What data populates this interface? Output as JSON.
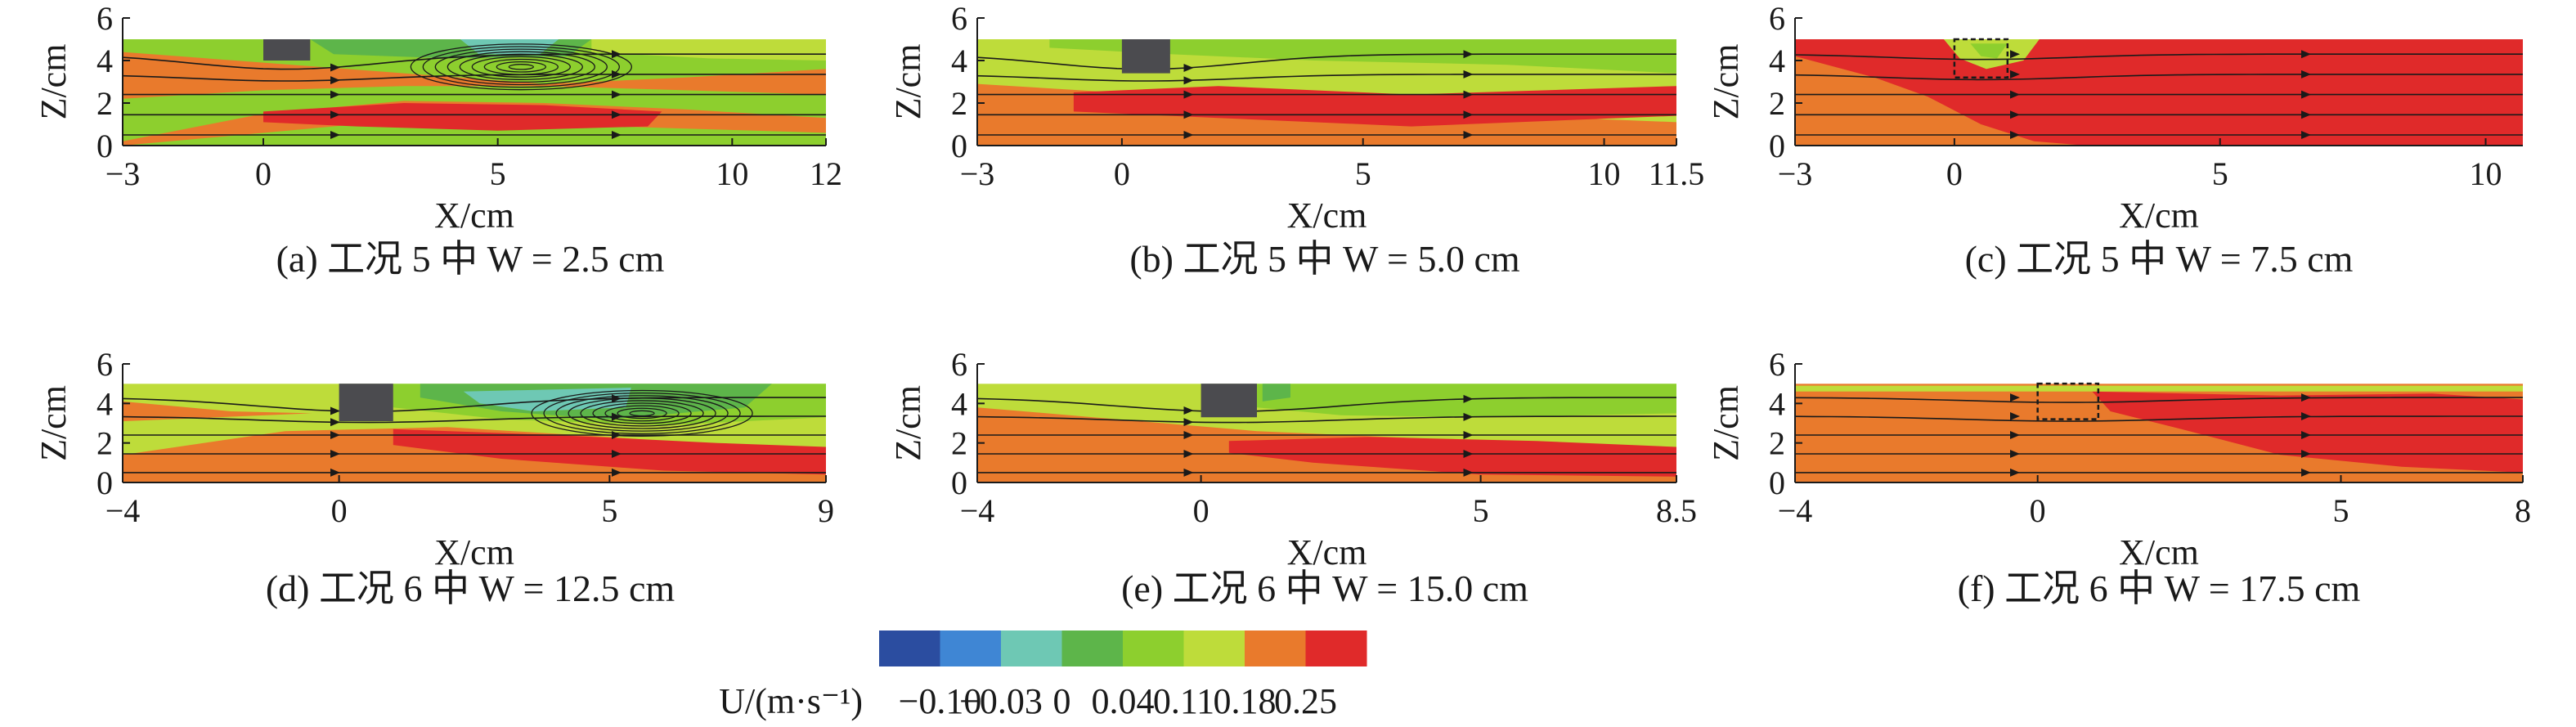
{
  "chart_data": {
    "type": "heatmap",
    "colorbar": {
      "label": "U/(m·s⁻¹)",
      "ticks": [
        "−0.10",
        "−0.03",
        "0",
        "0.04",
        "0.11",
        "0.18",
        "0.25"
      ],
      "colors": [
        "#2b4da0",
        "#3f86d4",
        "#6ec8b4",
        "#5db54a",
        "#8dcf2e",
        "#bedc3a",
        "#e97a2c",
        "#e02a2a"
      ]
    },
    "zlabel": "Z/cm",
    "xlabel": "X/cm",
    "z_ticks": [
      0,
      2,
      4,
      6
    ],
    "panels": [
      {
        "id": "a",
        "caption": "(a) 工况 5 中 W = 2.5 cm",
        "x_ticks": [
          -3,
          0,
          5,
          10,
          12
        ],
        "xlim": [
          -3,
          12
        ],
        "zlim": [
          0,
          6
        ],
        "water_depth": 5,
        "obstacle": {
          "x": [
            0,
            1
          ],
          "z": [
            4,
            5
          ],
          "submerged": false
        },
        "vortex": {
          "x": 5.5,
          "z": 3.7
        },
        "zones": [
          {
            "level": "0.04",
            "polygon": [
              [
                -3,
                0
              ],
              [
                12,
                0
              ],
              [
                12,
                5
              ],
              [
                -3,
                5
              ]
            ]
          },
          {
            "level": "0.18",
            "polygon": [
              [
                -3,
                0.2
              ],
              [
                0,
                1.5
              ],
              [
                3,
                2.1
              ],
              [
                6,
                2.0
              ],
              [
                9,
                1.7
              ],
              [
                12,
                1.3
              ],
              [
                12,
                0.6
              ],
              [
                9,
                0.8
              ],
              [
                6,
                1.0
              ],
              [
                3,
                1.2
              ],
              [
                -3,
                0
              ]
            ]
          },
          {
            "level": "0.18",
            "polygon": [
              [
                -3,
                2.2
              ],
              [
                0,
                2.6
              ],
              [
                3,
                2.8
              ],
              [
                6,
                2.8
              ],
              [
                9,
                2.6
              ],
              [
                12,
                2.4
              ],
              [
                12,
                3.6
              ],
              [
                9,
                3.2
              ],
              [
                6,
                2.9
              ],
              [
                3,
                3.4
              ],
              [
                0,
                3.9
              ],
              [
                -3,
                4.4
              ]
            ]
          },
          {
            "level": "0.25",
            "polygon": [
              [
                0,
                1.6
              ],
              [
                3,
                2.0
              ],
              [
                6,
                1.9
              ],
              [
                8.5,
                1.6
              ],
              [
                8.2,
                0.9
              ],
              [
                5,
                0.7
              ],
              [
                2,
                0.9
              ],
              [
                0,
                1.1
              ]
            ]
          },
          {
            "level": "0",
            "polygon": [
              [
                1,
                5
              ],
              [
                7,
                5
              ],
              [
                6.5,
                4.2
              ],
              [
                4,
                4.1
              ],
              [
                1.5,
                4.3
              ]
            ]
          },
          {
            "level": "-0.03",
            "polygon": [
              [
                4.2,
                5
              ],
              [
                6.3,
                5
              ],
              [
                5.9,
                4.3
              ],
              [
                4.6,
                4.3
              ]
            ]
          },
          {
            "level": "0.11",
            "polygon": [
              [
                7,
                5
              ],
              [
                12,
                5
              ],
              [
                12,
                4.0
              ],
              [
                9.5,
                4.1
              ],
              [
                7,
                4.4
              ]
            ]
          }
        ]
      },
      {
        "id": "b",
        "caption": "(b) 工况 5 中 W = 5.0 cm",
        "x_ticks": [
          -3,
          0,
          5,
          10,
          11.5
        ],
        "xlim": [
          -3,
          11.5
        ],
        "zlim": [
          0,
          6
        ],
        "water_depth": 5,
        "obstacle": {
          "x": [
            0,
            1
          ],
          "z": [
            3.4,
            5
          ],
          "submerged": false
        },
        "vortex": null,
        "zones": [
          {
            "level": "0.11",
            "polygon": [
              [
                -3,
                0
              ],
              [
                11.5,
                0
              ],
              [
                11.5,
                5
              ],
              [
                -3,
                5
              ]
            ]
          },
          {
            "level": "0.04",
            "polygon": [
              [
                -1.5,
                5
              ],
              [
                11.5,
                5
              ],
              [
                11.5,
                3.4
              ],
              [
                8,
                3.8
              ],
              [
                4,
                4.0
              ],
              [
                1,
                4.3
              ],
              [
                -1.5,
                4.6
              ]
            ]
          },
          {
            "level": "0.18",
            "polygon": [
              [
                -3,
                0
              ],
              [
                11.5,
                0
              ],
              [
                11.5,
                1.1
              ],
              [
                6,
                1.6
              ],
              [
                2,
                2.2
              ],
              [
                -3,
                2.9
              ]
            ]
          },
          {
            "level": "0.25",
            "polygon": [
              [
                -1,
                2.5
              ],
              [
                2,
                2.8
              ],
              [
                6,
                2.4
              ],
              [
                11.5,
                2.8
              ],
              [
                11.5,
                1.4
              ],
              [
                6,
                0.9
              ],
              [
                2,
                1.3
              ],
              [
                -1,
                1.6
              ]
            ]
          }
        ]
      },
      {
        "id": "c",
        "caption": "(c) 工况 5 中 W = 7.5 cm",
        "x_ticks": [
          -3,
          0,
          5,
          10
        ],
        "xlim": [
          -3,
          10.7
        ],
        "zlim": [
          0,
          6
        ],
        "water_depth": 5,
        "obstacle": {
          "x": [
            0,
            1
          ],
          "z": [
            3.2,
            5
          ],
          "submerged": true
        },
        "vortex": null,
        "zones": [
          {
            "level": "0.25",
            "polygon": [
              [
                -3,
                0
              ],
              [
                10.7,
                0
              ],
              [
                10.7,
                5
              ],
              [
                -3,
                5
              ]
            ]
          },
          {
            "level": "0.18",
            "polygon": [
              [
                -3,
                0
              ],
              [
                -3,
                4.2
              ],
              [
                -1.5,
                3.2
              ],
              [
                -0.5,
                2.3
              ],
              [
                0.5,
                1.0
              ],
              [
                1.5,
                0.2
              ],
              [
                2.5,
                0
              ]
            ]
          },
          {
            "level": "0.11",
            "polygon": [
              [
                -0.2,
                5
              ],
              [
                1.6,
                5
              ],
              [
                1.3,
                4.0
              ],
              [
                0.6,
                3.6
              ],
              [
                0.1,
                4.1
              ]
            ]
          },
          {
            "level": "0.04",
            "polygon": [
              [
                0.3,
                4.8
              ],
              [
                1.0,
                4.8
              ],
              [
                0.8,
                4.1
              ],
              [
                0.5,
                4.2
              ]
            ]
          }
        ]
      },
      {
        "id": "d",
        "caption": "(d) 工况 6 中 W = 12.5 cm",
        "x_ticks": [
          -4,
          0,
          5,
          9
        ],
        "xlim": [
          -4,
          9
        ],
        "zlim": [
          0,
          6
        ],
        "water_depth": 5,
        "obstacle": {
          "x": [
            0,
            1
          ],
          "z": [
            3.1,
            5
          ],
          "submerged": false
        },
        "vortex": {
          "x": 5.6,
          "z": 3.5
        },
        "zones": [
          {
            "level": "0.11",
            "polygon": [
              [
                -4,
                0
              ],
              [
                9,
                0
              ],
              [
                9,
                5
              ],
              [
                -4,
                5
              ]
            ]
          },
          {
            "level": "0.18",
            "polygon": [
              [
                -4,
                0
              ],
              [
                9,
                0
              ],
              [
                9,
                1.5
              ],
              [
                5,
                2.3
              ],
              [
                2,
                2.8
              ],
              [
                -1,
                2.6
              ],
              [
                -4,
                1.4
              ]
            ]
          },
          {
            "level": "0.25",
            "polygon": [
              [
                1,
                2.7
              ],
              [
                4,
                2.4
              ],
              [
                7,
                2.0
              ],
              [
                9,
                1.8
              ],
              [
                9,
                0.4
              ],
              [
                6,
                0.6
              ],
              [
                3,
                1.2
              ],
              [
                1,
                1.9
              ]
            ]
          },
          {
            "level": "0.04",
            "polygon": [
              [
                1,
                5
              ],
              [
                9,
                5
              ],
              [
                9,
                3.3
              ],
              [
                6,
                2.9
              ],
              [
                3,
                3.2
              ],
              [
                1,
                3.8
              ]
            ]
          },
          {
            "level": "0",
            "polygon": [
              [
                1.5,
                5
              ],
              [
                8,
                5
              ],
              [
                7.5,
                3.8
              ],
              [
                5,
                3.2
              ],
              [
                3,
                3.6
              ],
              [
                1.5,
                4.3
              ]
            ]
          },
          {
            "level": "-0.03",
            "polygon": [
              [
                2.3,
                4.6
              ],
              [
                5.4,
                4.8
              ],
              [
                5.3,
                3.8
              ],
              [
                3.6,
                3.6
              ],
              [
                2.6,
                4.0
              ]
            ]
          },
          {
            "level": "0.18",
            "polygon": [
              [
                -4,
                4.1
              ],
              [
                -2,
                3.6
              ],
              [
                -0.5,
                3.5
              ],
              [
                -4,
                3.1
              ]
            ]
          }
        ]
      },
      {
        "id": "e",
        "caption": "(e) 工况 6 中 W = 15.0 cm",
        "x_ticks": [
          -4,
          0,
          5,
          8.5
        ],
        "xlim": [
          -4,
          8.5
        ],
        "zlim": [
          0,
          6
        ],
        "water_depth": 5,
        "obstacle": {
          "x": [
            0,
            1
          ],
          "z": [
            3.3,
            5
          ],
          "submerged": false
        },
        "vortex": null,
        "zones": [
          {
            "level": "0.11",
            "polygon": [
              [
                -4,
                0
              ],
              [
                8.5,
                0
              ],
              [
                8.5,
                5
              ],
              [
                -4,
                5
              ]
            ]
          },
          {
            "level": "0.18",
            "polygon": [
              [
                -4,
                0
              ],
              [
                8.5,
                0
              ],
              [
                8.5,
                1.3
              ],
              [
                5,
                2.1
              ],
              [
                1,
                2.6
              ],
              [
                -4,
                3.8
              ]
            ]
          },
          {
            "level": "0.25",
            "polygon": [
              [
                0.5,
                2.1
              ],
              [
                3,
                2.3
              ],
              [
                6,
                2.1
              ],
              [
                8.5,
                1.8
              ],
              [
                8.5,
                0.3
              ],
              [
                5,
                0.4
              ],
              [
                2,
                1.0
              ],
              [
                0.5,
                1.5
              ]
            ]
          },
          {
            "level": "0.04",
            "polygon": [
              [
                1,
                5
              ],
              [
                8.5,
                5
              ],
              [
                8.5,
                3.5
              ],
              [
                5,
                3.3
              ],
              [
                2.5,
                3.4
              ],
              [
                1,
                3.8
              ]
            ]
          },
          {
            "level": "0",
            "polygon": [
              [
                1.1,
                5
              ],
              [
                1.6,
                5
              ],
              [
                1.6,
                4.3
              ],
              [
                1.1,
                4.1
              ]
            ]
          }
        ]
      },
      {
        "id": "f",
        "caption": "(f) 工况 6 中 W = 17.5 cm",
        "x_ticks": [
          -4,
          0,
          5,
          8
        ],
        "xlim": [
          -4,
          8
        ],
        "zlim": [
          0,
          6
        ],
        "water_depth": 5,
        "obstacle": {
          "x": [
            0,
            1
          ],
          "z": [
            3.2,
            5
          ],
          "submerged": true
        },
        "vortex": null,
        "zones": [
          {
            "level": "0.18",
            "polygon": [
              [
                -4,
                0
              ],
              [
                8,
                0
              ],
              [
                8,
                5
              ],
              [
                -4,
                5
              ]
            ]
          },
          {
            "level": "0.25",
            "polygon": [
              [
                0.9,
                4.6
              ],
              [
                4,
                4.4
              ],
              [
                6.5,
                4.5
              ],
              [
                8,
                4.2
              ],
              [
                8,
                0.5
              ],
              [
                6,
                0.8
              ],
              [
                4,
                1.4
              ],
              [
                2.5,
                2.6
              ],
              [
                1.2,
                3.6
              ]
            ]
          },
          {
            "level": "0.11",
            "polygon": [
              [
                -4,
                4.9
              ],
              [
                8,
                4.9
              ],
              [
                8,
                4.6
              ],
              [
                -4,
                4.6
              ]
            ]
          }
        ]
      }
    ]
  }
}
